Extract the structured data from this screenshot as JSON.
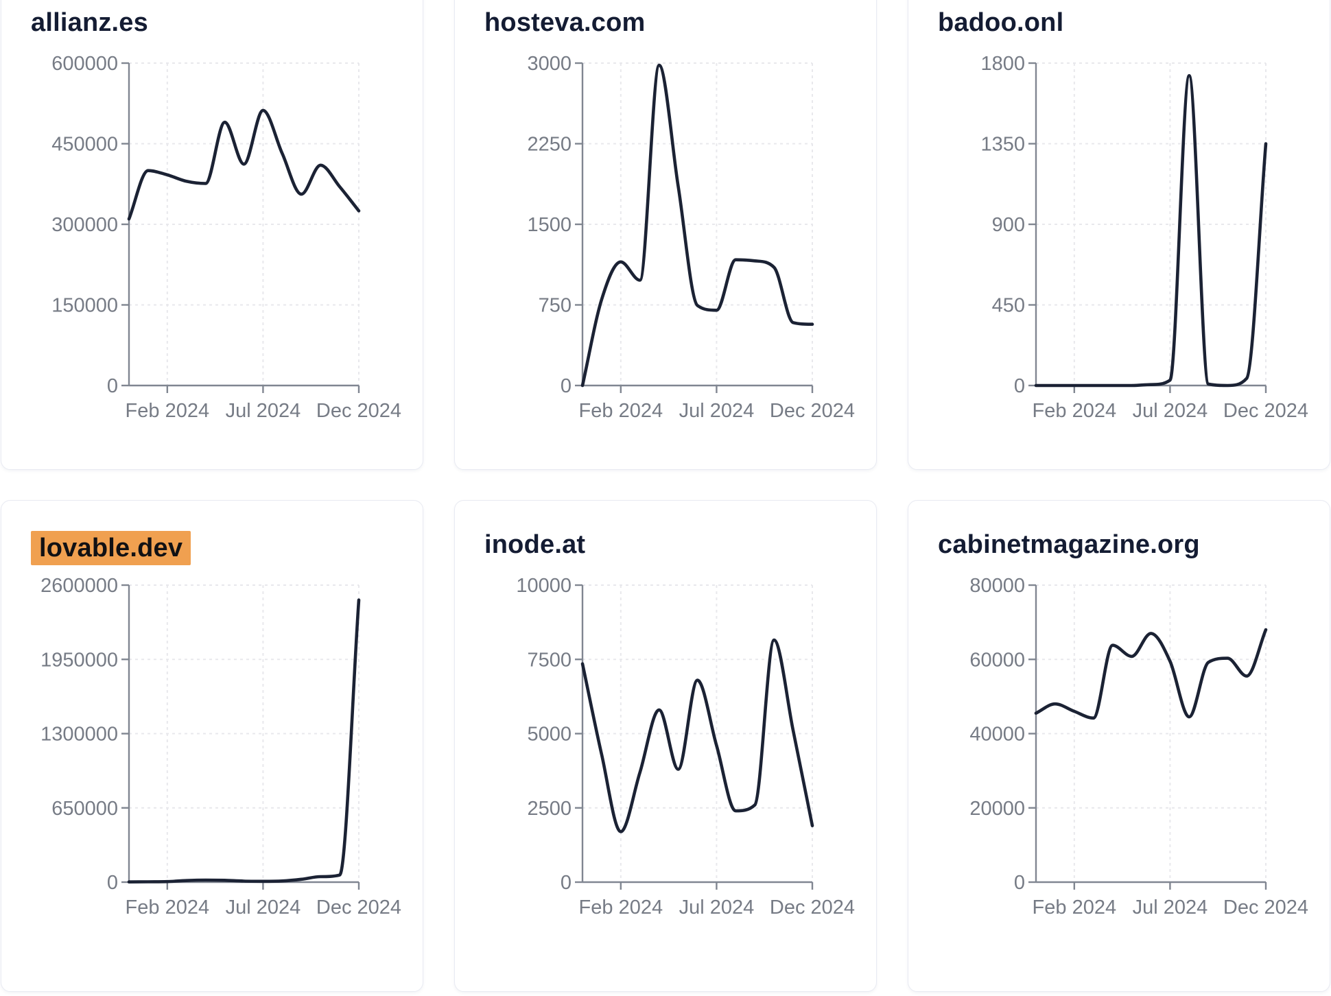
{
  "styles": {
    "line_color": "#1b2234",
    "title_color": "#141c33",
    "highlight_bg": "#f0a050",
    "highlight_text": "#111114",
    "tick_label_color": "#767b85",
    "axis_color": "#808691",
    "grid_color": "#e8e8ec",
    "card_border": "#e8eaf2",
    "card_bg": "#ffffff",
    "page_bg": "#ffffff"
  },
  "chart_data": [
    {
      "type": "line",
      "title": "allianz.es",
      "highlight": false,
      "x": [
        "Dec 2023",
        "Jan 2024",
        "Feb 2024",
        "Mar 2024",
        "Apr 2024",
        "May 2024",
        "Jun 2024",
        "Jul 2024",
        "Aug 2024",
        "Sep 2024",
        "Oct 2024",
        "Nov 2024",
        "Dec 2024"
      ],
      "values": [
        310000,
        400000,
        392000,
        380000,
        376000,
        490000,
        412000,
        512000,
        432000,
        356000,
        410000,
        370000,
        325000
      ],
      "ylim": [
        0,
        600000
      ],
      "yticks": [
        0,
        150000,
        300000,
        450000,
        600000
      ],
      "xticks": [
        {
          "index": 2,
          "label": "Feb 2024"
        },
        {
          "index": 7,
          "label": "Jul 2024"
        },
        {
          "index": 12,
          "label": "Dec 2024"
        }
      ],
      "grid": true,
      "legend": "none"
    },
    {
      "type": "line",
      "title": "hosteva.com",
      "highlight": false,
      "x": [
        "Dec 2023",
        "Jan 2024",
        "Feb 2024",
        "Mar 2024",
        "Apr 2024",
        "May 2024",
        "Jun 2024",
        "Jul 2024",
        "Aug 2024",
        "Sep 2024",
        "Oct 2024",
        "Nov 2024",
        "Dec 2024"
      ],
      "values": [
        0,
        800,
        1150,
        980,
        2980,
        1850,
        745,
        700,
        1170,
        1160,
        1100,
        585,
        570
      ],
      "ylim": [
        0,
        3000
      ],
      "yticks": [
        0,
        750,
        1500,
        2250,
        3000
      ],
      "xticks": [
        {
          "index": 2,
          "label": "Feb 2024"
        },
        {
          "index": 7,
          "label": "Jul 2024"
        },
        {
          "index": 12,
          "label": "Dec 2024"
        }
      ],
      "grid": true,
      "legend": "none"
    },
    {
      "type": "line",
      "title": "badoo.onl",
      "highlight": false,
      "x": [
        "Dec 2023",
        "Jan 2024",
        "Feb 2024",
        "Mar 2024",
        "Apr 2024",
        "May 2024",
        "Jun 2024",
        "Jul 2024",
        "Aug 2024",
        "Sep 2024",
        "Oct 2024",
        "Nov 2024",
        "Dec 2024"
      ],
      "values": [
        0,
        0,
        0,
        0,
        0,
        0,
        5,
        30,
        1730,
        8,
        0,
        40,
        1350
      ],
      "ylim": [
        0,
        1800
      ],
      "yticks": [
        0,
        450,
        900,
        1350,
        1800
      ],
      "xticks": [
        {
          "index": 2,
          "label": "Feb 2024"
        },
        {
          "index": 7,
          "label": "Jul 2024"
        },
        {
          "index": 12,
          "label": "Dec 2024"
        }
      ],
      "grid": true,
      "legend": "none"
    },
    {
      "type": "line",
      "title": "lovable.dev",
      "highlight": true,
      "x": [
        "Dec 2023",
        "Jan 2024",
        "Feb 2024",
        "Mar 2024",
        "Apr 2024",
        "May 2024",
        "Jun 2024",
        "Jul 2024",
        "Aug 2024",
        "Sep 2024",
        "Oct 2024",
        "Nov 2024",
        "Dec 2024"
      ],
      "values": [
        2000,
        3000,
        5000,
        14000,
        18000,
        16000,
        9000,
        7000,
        10000,
        25000,
        48000,
        62000,
        2470000
      ],
      "ylim": [
        0,
        2600000
      ],
      "yticks": [
        0,
        650000,
        1300000,
        1950000,
        2600000
      ],
      "xticks": [
        {
          "index": 2,
          "label": "Feb 2024"
        },
        {
          "index": 7,
          "label": "Jul 2024"
        },
        {
          "index": 12,
          "label": "Dec 2024"
        }
      ],
      "grid": true,
      "legend": "none"
    },
    {
      "type": "line",
      "title": "inode.at",
      "highlight": false,
      "x": [
        "Dec 2023",
        "Jan 2024",
        "Feb 2024",
        "Mar 2024",
        "Apr 2024",
        "May 2024",
        "Jun 2024",
        "Jul 2024",
        "Aug 2024",
        "Sep 2024",
        "Oct 2024",
        "Nov 2024",
        "Dec 2024"
      ],
      "values": [
        7350,
        4300,
        1700,
        3700,
        5800,
        3800,
        6800,
        4600,
        2400,
        2600,
        8150,
        5100,
        1900
      ],
      "ylim": [
        0,
        10000
      ],
      "yticks": [
        0,
        2500,
        5000,
        7500,
        10000
      ],
      "xticks": [
        {
          "index": 2,
          "label": "Feb 2024"
        },
        {
          "index": 7,
          "label": "Jul 2024"
        },
        {
          "index": 12,
          "label": "Dec 2024"
        }
      ],
      "grid": true,
      "legend": "none"
    },
    {
      "type": "line",
      "title": "cabinetmagazine.org",
      "highlight": false,
      "x": [
        "Dec 2023",
        "Jan 2024",
        "Feb 2024",
        "Mar 2024",
        "Apr 2024",
        "May 2024",
        "Jun 2024",
        "Jul 2024",
        "Aug 2024",
        "Sep 2024",
        "Oct 2024",
        "Nov 2024",
        "Dec 2024"
      ],
      "values": [
        45500,
        48000,
        46000,
        44200,
        63800,
        60800,
        67000,
        59500,
        44500,
        59200,
        60300,
        55500,
        68000
      ],
      "ylim": [
        0,
        80000
      ],
      "yticks": [
        0,
        20000,
        40000,
        60000,
        80000
      ],
      "xticks": [
        {
          "index": 2,
          "label": "Feb 2024"
        },
        {
          "index": 7,
          "label": "Jul 2024"
        },
        {
          "index": 12,
          "label": "Dec 2024"
        }
      ],
      "grid": true,
      "legend": "none"
    }
  ]
}
